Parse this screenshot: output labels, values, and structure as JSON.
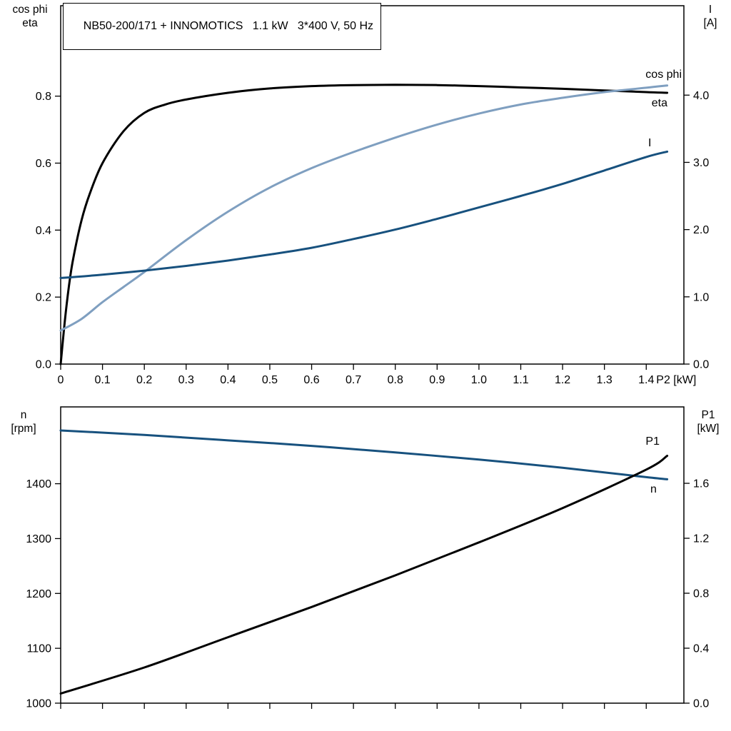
{
  "header": {
    "title": "NB50-200/171 + INNOMOTICS   1.1 kW   3*400 V, 50 Hz"
  },
  "colors": {
    "frame": "#000000",
    "eta_p1_curve": "#000000",
    "cos_phi_curve": "#7f9fc0",
    "current_n_curve": "#17517e"
  },
  "chart_data": [
    {
      "type": "line",
      "title": "Motor efficiency, power factor and current vs shaft power",
      "grid": false,
      "legend_position": "end-of-curve",
      "x_axis": {
        "unit_label": "P2 [kW]",
        "range": [
          0,
          1.49
        ],
        "tick_values": [
          0,
          0.1,
          0.2,
          0.3,
          0.4,
          0.5,
          0.6,
          0.7,
          0.8,
          0.9,
          1.0,
          1.1,
          1.2,
          1.3,
          1.4
        ],
        "tick_labels": [
          "0",
          "0.1",
          "0.2",
          "0.3",
          "0.4",
          "0.5",
          "0.6",
          "0.7",
          "0.8",
          "0.9",
          "1.0",
          "1.1",
          "1.2",
          "1.3",
          "1.4"
        ],
        "show_tick_labels": true
      },
      "y_left": {
        "header_lines": [
          "cos phi",
          "eta"
        ],
        "range": [
          0,
          1.07
        ],
        "tick_values": [
          0.0,
          0.2,
          0.4,
          0.6,
          0.8
        ],
        "tick_labels": [
          "0.0",
          "0.2",
          "0.4",
          "0.6",
          "0.8"
        ]
      },
      "y_right": {
        "header_lines": [
          "I",
          "[A]"
        ],
        "range": [
          0,
          5.33
        ],
        "tick_values": [
          0.0,
          1.0,
          2.0,
          3.0,
          4.0
        ],
        "tick_labels": [
          "0.0",
          "1.0",
          "2.0",
          "3.0",
          "4.0"
        ]
      },
      "series": [
        {
          "name": "eta",
          "label": "eta",
          "axis": "left",
          "color": "#000000",
          "points": [
            [
              0,
              0
            ],
            [
              0.01,
              0.13
            ],
            [
              0.02,
              0.235
            ],
            [
              0.03,
              0.315
            ],
            [
              0.05,
              0.43
            ],
            [
              0.07,
              0.51
            ],
            [
              0.1,
              0.6
            ],
            [
              0.15,
              0.695
            ],
            [
              0.2,
              0.75
            ],
            [
              0.25,
              0.775
            ],
            [
              0.3,
              0.79
            ],
            [
              0.4,
              0.81
            ],
            [
              0.5,
              0.823
            ],
            [
              0.6,
              0.83
            ],
            [
              0.7,
              0.833
            ],
            [
              0.8,
              0.834
            ],
            [
              0.9,
              0.833
            ],
            [
              1.0,
              0.83
            ],
            [
              1.1,
              0.826
            ],
            [
              1.2,
              0.822
            ],
            [
              1.3,
              0.817
            ],
            [
              1.4,
              0.812
            ],
            [
              1.45,
              0.81
            ]
          ]
        },
        {
          "name": "cos phi",
          "label": "cos phi",
          "axis": "left",
          "color": "#7f9fc0",
          "points": [
            [
              0,
              0.1
            ],
            [
              0.05,
              0.135
            ],
            [
              0.1,
              0.185
            ],
            [
              0.15,
              0.23
            ],
            [
              0.2,
              0.275
            ],
            [
              0.3,
              0.37
            ],
            [
              0.4,
              0.455
            ],
            [
              0.5,
              0.527
            ],
            [
              0.6,
              0.585
            ],
            [
              0.7,
              0.633
            ],
            [
              0.8,
              0.676
            ],
            [
              0.9,
              0.715
            ],
            [
              1.0,
              0.748
            ],
            [
              1.1,
              0.775
            ],
            [
              1.2,
              0.795
            ],
            [
              1.3,
              0.812
            ],
            [
              1.4,
              0.825
            ],
            [
              1.45,
              0.832
            ]
          ]
        },
        {
          "name": "I",
          "label": "I",
          "axis": "right",
          "color": "#17517e",
          "points": [
            [
              0,
              1.28
            ],
            [
              0.1,
              1.33
            ],
            [
              0.2,
              1.39
            ],
            [
              0.3,
              1.46
            ],
            [
              0.4,
              1.54
            ],
            [
              0.5,
              1.63
            ],
            [
              0.6,
              1.73
            ],
            [
              0.7,
              1.86
            ],
            [
              0.8,
              2.0
            ],
            [
              0.9,
              2.16
            ],
            [
              1.0,
              2.33
            ],
            [
              1.1,
              2.5
            ],
            [
              1.2,
              2.68
            ],
            [
              1.3,
              2.88
            ],
            [
              1.4,
              3.08
            ],
            [
              1.45,
              3.16
            ]
          ]
        }
      ]
    },
    {
      "type": "line",
      "title": "Speed and input power vs shaft power",
      "grid": false,
      "legend_position": "end-of-curve",
      "x_axis": {
        "unit_label": "",
        "range": [
          0,
          1.49
        ],
        "tick_values": [
          0,
          0.1,
          0.2,
          0.3,
          0.4,
          0.5,
          0.6,
          0.7,
          0.8,
          0.9,
          1.0,
          1.1,
          1.2,
          1.3,
          1.4
        ],
        "tick_labels": [],
        "show_tick_labels": false
      },
      "y_left": {
        "header_lines": [
          "n",
          "[rpm]"
        ],
        "range": [
          1000,
          1540
        ],
        "tick_values": [
          1000,
          1100,
          1200,
          1300,
          1400
        ],
        "tick_labels": [
          "1000",
          "1100",
          "1200",
          "1300",
          "1400"
        ]
      },
      "y_right": {
        "header_lines": [
          "P1",
          "[kW]"
        ],
        "range": [
          0,
          2.156
        ],
        "tick_values": [
          0.0,
          0.4,
          0.8,
          1.2,
          1.6
        ],
        "tick_labels": [
          "0.0",
          "0.4",
          "0.8",
          "1.2",
          "1.6"
        ]
      },
      "series": [
        {
          "name": "n",
          "label": "n",
          "axis": "left",
          "color": "#17517e",
          "points": [
            [
              0,
              1497
            ],
            [
              0.2,
              1489
            ],
            [
              0.4,
              1479
            ],
            [
              0.6,
              1469
            ],
            [
              0.8,
              1457
            ],
            [
              1.0,
              1444
            ],
            [
              1.2,
              1429
            ],
            [
              1.4,
              1412
            ],
            [
              1.45,
              1408
            ]
          ]
        },
        {
          "name": "P1",
          "label": "P1",
          "axis": "right",
          "color": "#000000",
          "points": [
            [
              0,
              0.07
            ],
            [
              0.2,
              0.26
            ],
            [
              0.4,
              0.48
            ],
            [
              0.6,
              0.7
            ],
            [
              0.8,
              0.93
            ],
            [
              1.0,
              1.17
            ],
            [
              1.2,
              1.42
            ],
            [
              1.4,
              1.7
            ],
            [
              1.45,
              1.8
            ]
          ]
        }
      ]
    }
  ]
}
